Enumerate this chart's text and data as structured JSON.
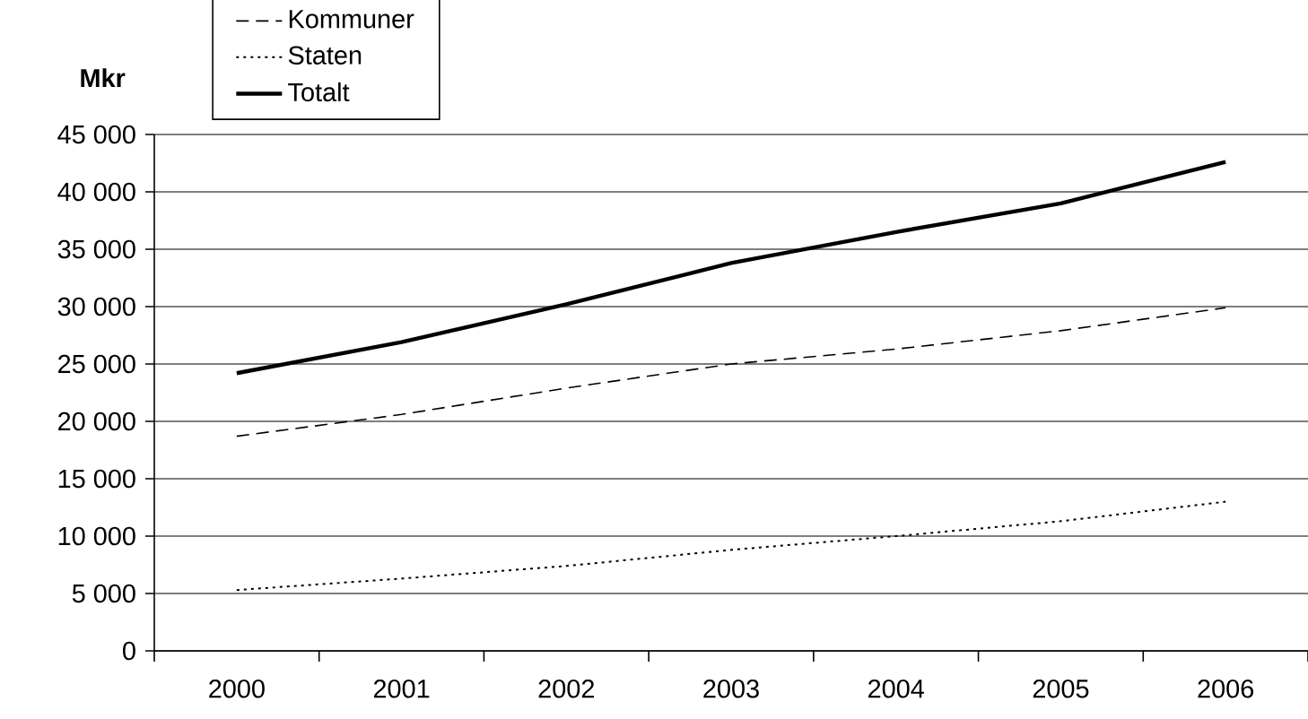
{
  "chart_data": {
    "type": "line",
    "ylabel": "Mkr",
    "categories": [
      "2000",
      "2001",
      "2002",
      "2003",
      "2004",
      "2005",
      "2006"
    ],
    "series": [
      {
        "name": "Kommuner",
        "color": "#000000",
        "line_style": "dashed",
        "values": [
          18700,
          20600,
          22900,
          25000,
          26300,
          27900,
          29900
        ]
      },
      {
        "name": "Staten",
        "color": "#000000",
        "line_style": "dotted",
        "values": [
          5300,
          6300,
          7400,
          8800,
          10000,
          11300,
          13000
        ]
      },
      {
        "name": "Totalt",
        "color": "#000000",
        "line_style": "solid",
        "values": [
          24200,
          26900,
          30200,
          33800,
          36500,
          39000,
          42600
        ]
      }
    ],
    "ylim": [
      0,
      45000
    ],
    "yticks": [
      {
        "value": 0,
        "label": "0"
      },
      {
        "value": 5000,
        "label": "5 000"
      },
      {
        "value": 10000,
        "label": "10 000"
      },
      {
        "value": 15000,
        "label": "15 000"
      },
      {
        "value": 20000,
        "label": "20 000"
      },
      {
        "value": 25000,
        "label": "25 000"
      },
      {
        "value": 30000,
        "label": "30 000"
      },
      {
        "value": 35000,
        "label": "35 000"
      },
      {
        "value": 40000,
        "label": "40 000"
      },
      {
        "value": 45000,
        "label": "45 000"
      }
    ],
    "grid": "y",
    "legend": "top left",
    "marker": "none"
  }
}
